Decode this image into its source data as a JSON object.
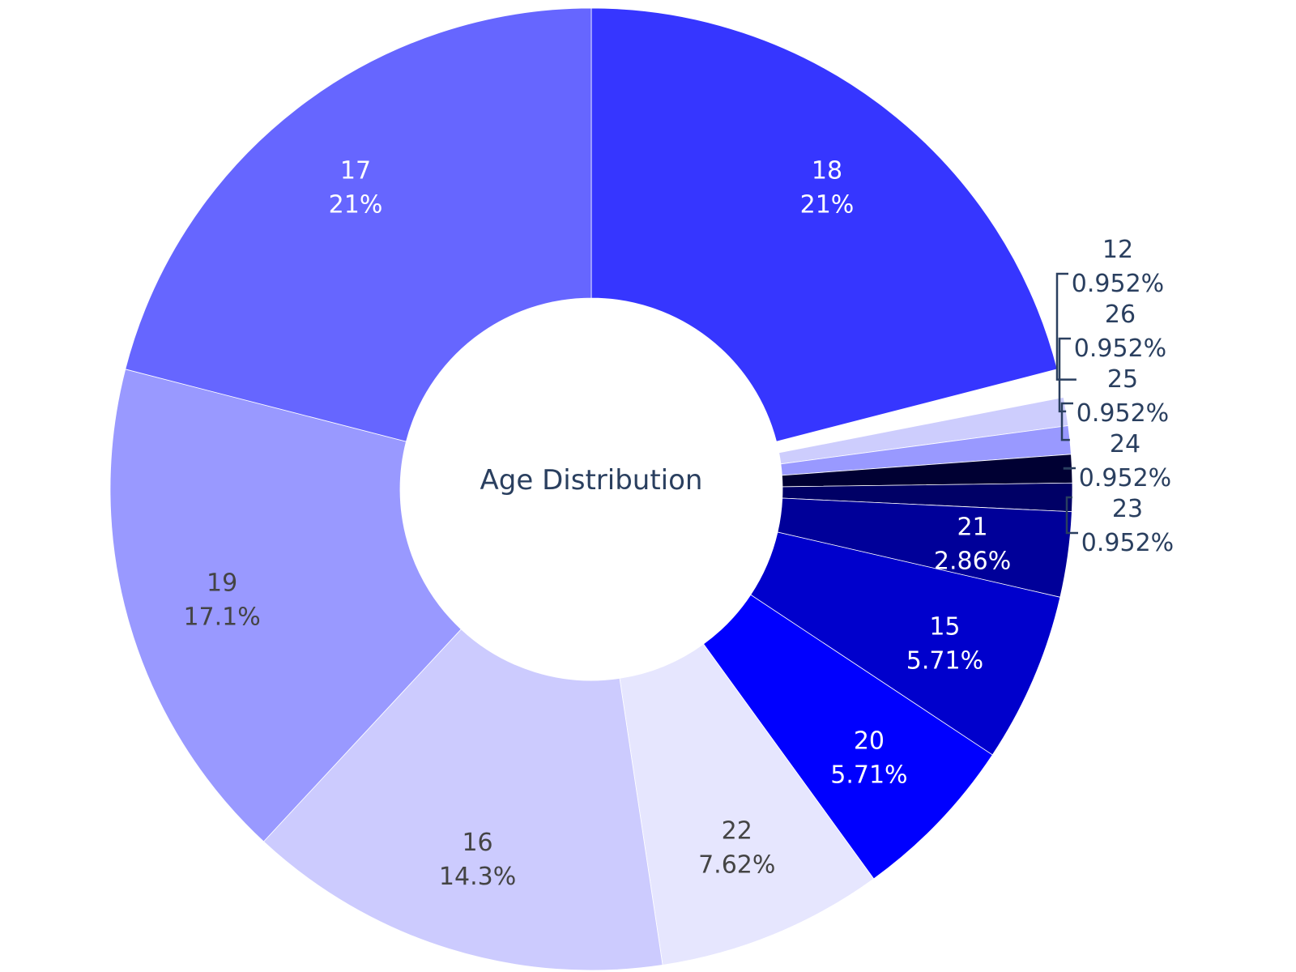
{
  "chart_data": {
    "type": "pie",
    "hole": true,
    "center_title": "Age Distribution",
    "direction": "clockwise",
    "start_angle_deg": 0,
    "slices": [
      {
        "label": "18",
        "percent_text": "21%",
        "value": 21.0,
        "color": "#3636ff",
        "text_color": "#ffffff"
      },
      {
        "label": "12",
        "percent_text": "0.952%",
        "value": 0.952,
        "color": "#ffffff",
        "text_color": "#2a3f5f",
        "pulled": true
      },
      {
        "label": "26",
        "percent_text": "0.952%",
        "value": 0.952,
        "color": "#cdcdfd",
        "text_color": "#2a3f5f"
      },
      {
        "label": "25",
        "percent_text": "0.952%",
        "value": 0.952,
        "color": "#9999ff",
        "text_color": "#2a3f5f"
      },
      {
        "label": "24",
        "percent_text": "0.952%",
        "value": 0.952,
        "color": "#000033",
        "text_color": "#2a3f5f"
      },
      {
        "label": "23",
        "percent_text": "0.952%",
        "value": 0.952,
        "color": "#000066",
        "text_color": "#2a3f5f"
      },
      {
        "label": "21",
        "percent_text": "2.86%",
        "value": 2.86,
        "color": "#000099",
        "text_color": "#ffffff"
      },
      {
        "label": "15",
        "percent_text": "5.71%",
        "value": 5.71,
        "color": "#0000cc",
        "text_color": "#ffffff"
      },
      {
        "label": "20",
        "percent_text": "5.71%",
        "value": 5.71,
        "color": "#0000ff",
        "text_color": "#ffffff"
      },
      {
        "label": "22",
        "percent_text": "7.62%",
        "value": 7.62,
        "color": "#e6e6fe",
        "text_color": "#444444"
      },
      {
        "label": "16",
        "percent_text": "14.3%",
        "value": 14.3,
        "color": "#cccbfe",
        "text_color": "#444444"
      },
      {
        "label": "19",
        "percent_text": "17.1%",
        "value": 17.1,
        "color": "#9999ff",
        "text_color": "#444444"
      },
      {
        "label": "17",
        "percent_text": "21%",
        "value": 21.0,
        "color": "#6666ff",
        "text_color": "#ffffff"
      }
    ],
    "outside_labels": [
      "12",
      "26",
      "25",
      "24",
      "23"
    ],
    "leader_color": "#2a3f5f"
  }
}
